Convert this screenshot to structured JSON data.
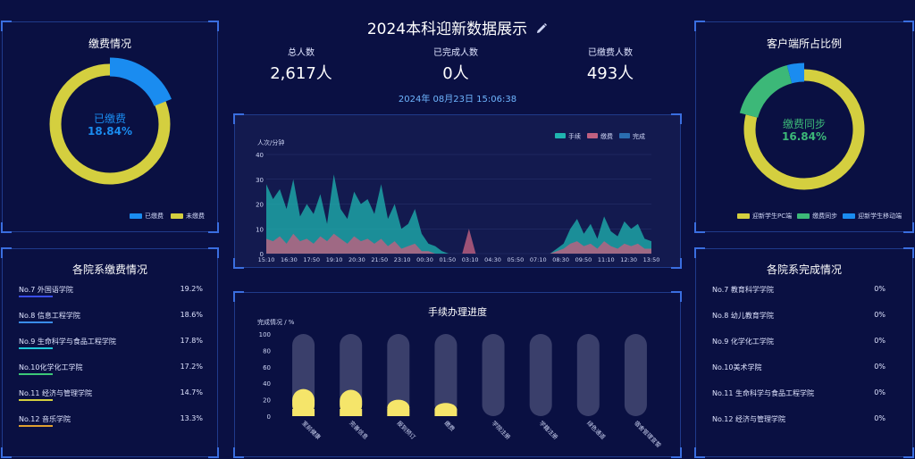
{
  "header": {
    "title": "2024本科迎新数据展示",
    "edit_icon": "pencil-icon",
    "datetime": "2024年 08月23日 15:06:38"
  },
  "stats": [
    {
      "label": "总人数",
      "value": "2,617人"
    },
    {
      "label": "已完成人数",
      "value": "0人"
    },
    {
      "label": "已缴费人数",
      "value": "493人"
    }
  ],
  "payment": {
    "title": "缴费情况",
    "center_label": "已缴费",
    "center_pct": "18.84%",
    "paid_fraction": 0.1884,
    "legend": [
      {
        "label": "已缴费",
        "color": "#1a8cf0"
      },
      {
        "label": "未缴费",
        "color": "#d4cf3f"
      }
    ]
  },
  "client": {
    "title": "客户端所占比例",
    "center_label": "缴费同步",
    "center_pct": "16.84%",
    "slices": [
      {
        "label": "迎新学生PC端",
        "fraction": 0.79,
        "color": "#d4cf3f"
      },
      {
        "label": "缴费同步",
        "fraction": 0.1684,
        "color": "#3cb878"
      },
      {
        "label": "迎新学生移动端",
        "fraction": 0.0416,
        "color": "#1a8cf0"
      }
    ]
  },
  "dept_pay": {
    "title": "各院系缴费情况",
    "items": [
      {
        "name": "No.7  外国语学院",
        "value": "19.2%",
        "color": "#3a4ee8"
      },
      {
        "name": "No.8  信息工程学院",
        "value": "18.6%",
        "color": "#3a8ce8"
      },
      {
        "name": "No.9  生命科学与食品工程学院",
        "value": "17.8%",
        "color": "#1fc8d8"
      },
      {
        "name": "No.10化学化工学院",
        "value": "17.2%",
        "color": "#3cc878"
      },
      {
        "name": "No.11 经济与管理学院",
        "value": "14.7%",
        "color": "#d4cf3f"
      },
      {
        "name": "No.12 音乐学院",
        "value": "13.3%",
        "color": "#e0a030"
      }
    ]
  },
  "dept_done": {
    "title": "各院系完成情况",
    "items": [
      {
        "name": "No.7  教育科学学院",
        "value": "0%"
      },
      {
        "name": "No.8  幼儿教育学院",
        "value": "0%"
      },
      {
        "name": "No.9  化学化工学院",
        "value": "0%"
      },
      {
        "name": "No.10美术学院",
        "value": "0%"
      },
      {
        "name": "No.11 生命科学与食品工程学院",
        "value": "0%"
      },
      {
        "name": "No.12 经济与管理学院",
        "value": "0%"
      }
    ]
  },
  "chart_data": [
    {
      "type": "area",
      "ylabel": "人次/分钟",
      "ylim": [
        0,
        40
      ],
      "yticks": [
        0,
        10,
        20,
        30,
        40
      ],
      "xticks": [
        "15:10",
        "16:30",
        "17:50",
        "19:10",
        "20:30",
        "21:50",
        "23:10",
        "00:30",
        "01:50",
        "03:10",
        "04:30",
        "05:50",
        "07:10",
        "08:30",
        "09:50",
        "11:10",
        "12:30",
        "13:50"
      ],
      "legend_position": "top-right",
      "series": [
        {
          "name": "手续",
          "color": "#1fb5b0",
          "values": [
            28,
            22,
            26,
            18,
            30,
            15,
            20,
            16,
            24,
            12,
            32,
            18,
            14,
            25,
            20,
            22,
            16,
            28,
            14,
            20,
            10,
            12,
            18,
            8,
            4,
            3,
            1,
            0,
            0,
            0,
            0,
            0,
            0,
            0,
            0,
            0,
            0,
            0,
            0,
            0,
            0,
            0,
            0,
            2,
            4,
            10,
            14,
            8,
            12,
            6,
            15,
            9,
            7,
            13,
            10,
            12,
            6,
            5
          ]
        },
        {
          "name": "缴费",
          "color": "#c06080",
          "values": [
            6,
            5,
            7,
            4,
            8,
            5,
            6,
            4,
            7,
            5,
            8,
            6,
            4,
            7,
            5,
            6,
            4,
            6,
            3,
            5,
            2,
            3,
            4,
            1,
            1,
            0,
            0,
            0,
            0,
            0,
            10,
            0,
            0,
            0,
            0,
            0,
            0,
            0,
            0,
            0,
            0,
            0,
            0,
            1,
            2,
            4,
            5,
            3,
            4,
            2,
            5,
            3,
            2,
            4,
            3,
            4,
            2,
            2
          ]
        },
        {
          "name": "完成",
          "color": "#2a6db0",
          "values": []
        }
      ]
    },
    {
      "type": "bar",
      "title": "手续办理进度",
      "ylabel": "完成情况 / %",
      "ylim": [
        0,
        100
      ],
      "yticks": [
        0,
        20,
        40,
        60,
        80,
        100
      ],
      "categories": [
        "室前健康",
        "完善信息",
        "报到预订",
        "缴费",
        "学院注册",
        "学籍注册",
        "绿色通道",
        "宿舍管理宣誓"
      ],
      "values": [
        33,
        32,
        20,
        16,
        0,
        0,
        0,
        0
      ]
    }
  ]
}
